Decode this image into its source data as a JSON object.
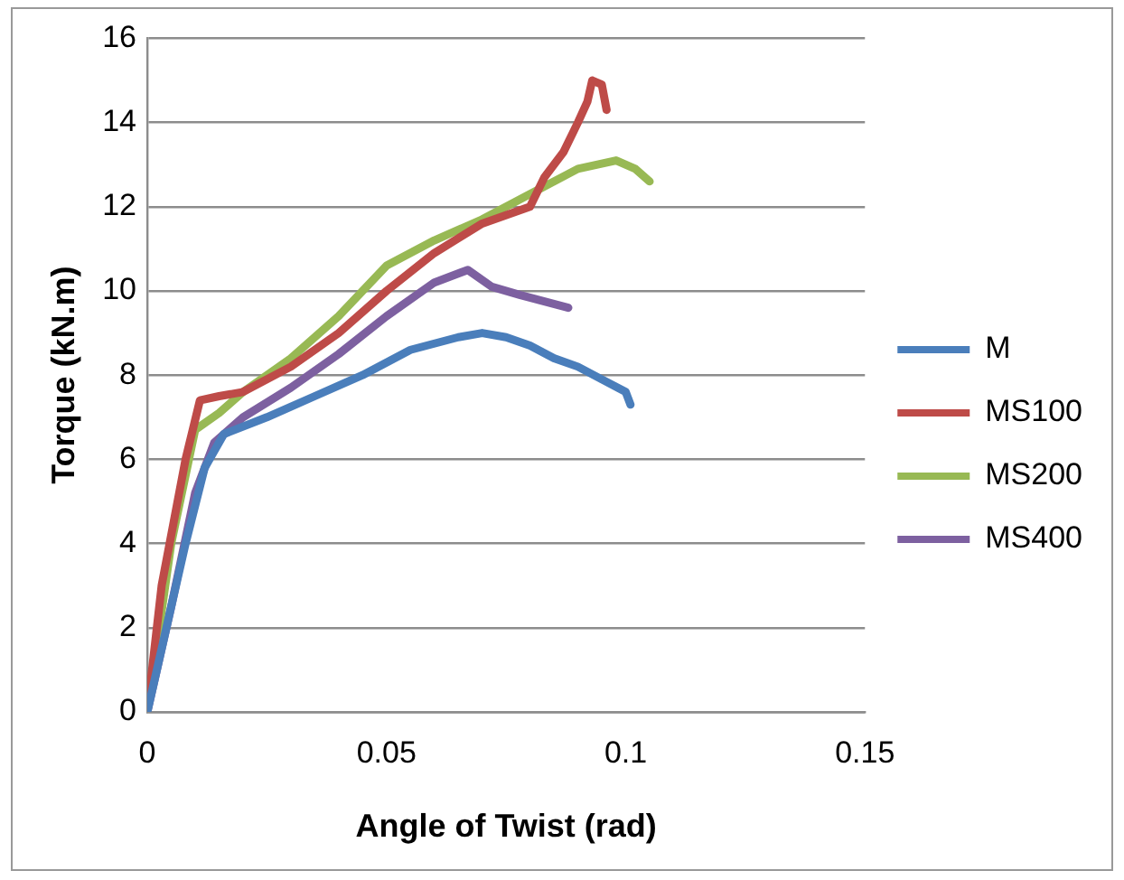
{
  "chart_data": {
    "type": "line",
    "xlabel": "Angle of Twist (rad)",
    "ylabel": "Torque (kN.m)",
    "xlim": [
      0,
      0.15
    ],
    "xticks": [
      0,
      0.05,
      0.1,
      0.15
    ],
    "ylim": [
      0,
      16
    ],
    "yticks": [
      0,
      2,
      4,
      6,
      8,
      10,
      12,
      14,
      16
    ],
    "grid": "y",
    "legend": "right",
    "marker": "none",
    "line_style": "solid",
    "series": [
      {
        "name": "M",
        "color": "#4a7ebb",
        "x": [
          0,
          0.004,
          0.008,
          0.012,
          0.016,
          0.025,
          0.035,
          0.045,
          0.055,
          0.065,
          0.07,
          0.075,
          0.08,
          0.085,
          0.09,
          0.095,
          0.1,
          0.101
        ],
        "values": [
          0,
          2,
          4,
          5.8,
          6.6,
          7,
          7.5,
          8,
          8.6,
          8.9,
          9,
          8.9,
          8.7,
          8.4,
          8.2,
          7.9,
          7.6,
          7.3
        ]
      },
      {
        "name": "MS100",
        "color": "#be4b48",
        "x": [
          0,
          0.003,
          0.008,
          0.011,
          0.015,
          0.02,
          0.03,
          0.04,
          0.05,
          0.06,
          0.07,
          0.08,
          0.083,
          0.087,
          0.09,
          0.092,
          0.093,
          0.095,
          0.096
        ],
        "values": [
          0,
          3,
          6,
          7.4,
          7.5,
          7.6,
          8.2,
          9,
          10,
          10.9,
          11.6,
          12,
          12.7,
          13.3,
          14,
          14.5,
          15,
          14.9,
          14.3
        ]
      },
      {
        "name": "MS200",
        "color": "#98b954",
        "x": [
          0,
          0.005,
          0.01,
          0.015,
          0.02,
          0.03,
          0.04,
          0.05,
          0.06,
          0.07,
          0.08,
          0.09,
          0.098,
          0.102,
          0.105
        ],
        "values": [
          0,
          4,
          6.7,
          7.1,
          7.6,
          8.4,
          9.4,
          10.6,
          11.2,
          11.7,
          12.3,
          12.9,
          13.1,
          12.9,
          12.6
        ]
      },
      {
        "name": "MS400",
        "color": "#7d60a0",
        "x": [
          0,
          0.005,
          0.01,
          0.014,
          0.02,
          0.03,
          0.04,
          0.05,
          0.06,
          0.067,
          0.072,
          0.078,
          0.088
        ],
        "values": [
          0,
          2.5,
          5.2,
          6.4,
          7,
          7.7,
          8.5,
          9.4,
          10.2,
          10.5,
          10.1,
          9.9,
          9.6
        ]
      }
    ]
  }
}
